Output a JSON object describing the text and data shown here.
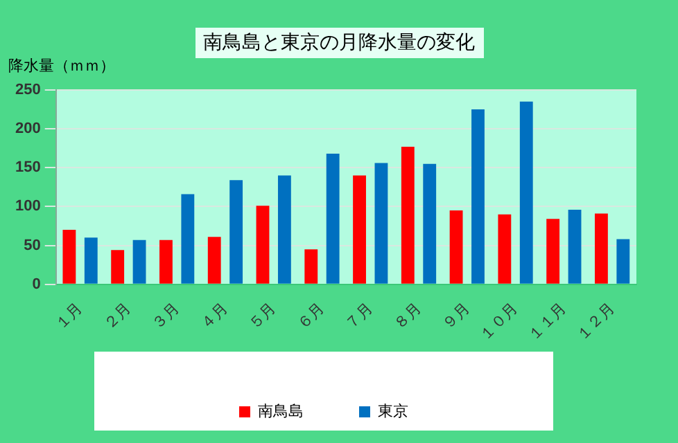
{
  "chart_data": {
    "type": "bar",
    "title": "南鳥島と東京の月降水量の変化",
    "ylabel": "降水量（ｍｍ）",
    "categories": [
      "１月",
      "２月",
      "３月",
      "４月",
      "５月",
      "６月",
      "７月",
      "８月",
      "９月",
      "１０月",
      "１１月",
      "１２月"
    ],
    "series": [
      {
        "name": "南鳥島",
        "color": "#ff0000",
        "values": [
          70,
          44,
          57,
          61,
          101,
          45,
          140,
          177,
          95,
          90,
          84,
          91
        ]
      },
      {
        "name": "東京",
        "color": "#0070c0",
        "values": [
          60,
          57,
          116,
          134,
          140,
          168,
          156,
          155,
          225,
          235,
          96,
          58
        ]
      }
    ],
    "ylim": [
      0,
      250
    ],
    "yticks": [
      0,
      50,
      100,
      150,
      200,
      250
    ],
    "grid": "y",
    "legend": "bottom"
  }
}
